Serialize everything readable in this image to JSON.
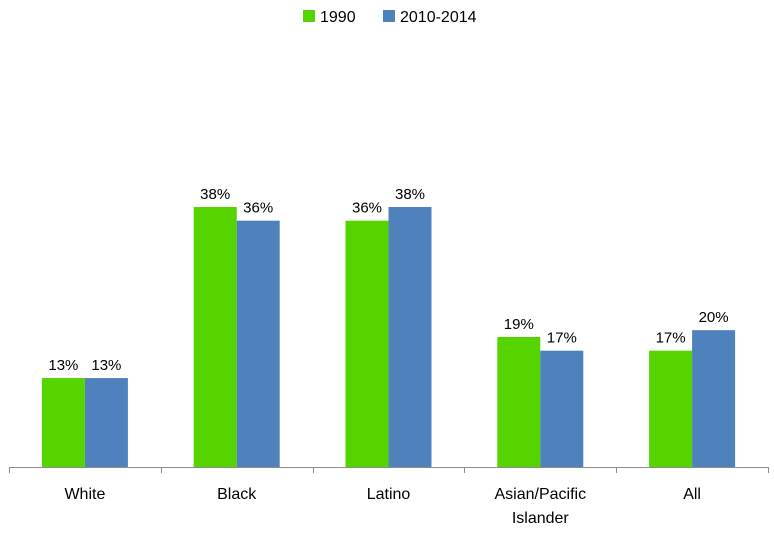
{
  "chart_data": {
    "type": "bar",
    "title": "",
    "xlabel": "",
    "ylabel": "",
    "ylim": [
      0,
      44
    ],
    "grid": false,
    "legend_position": "top-center",
    "categories": [
      "White",
      "Black",
      "Latino",
      "Asian/Pacific Islander",
      "All"
    ],
    "category_lines": [
      [
        "White"
      ],
      [
        "Black"
      ],
      [
        "Latino"
      ],
      [
        "Asian/Pacific",
        "Islander"
      ],
      [
        "All"
      ]
    ],
    "series": [
      {
        "name": "1990",
        "color": "#56d400",
        "values": [
          13,
          38,
          36,
          19,
          17
        ],
        "labels": [
          "13%",
          "38%",
          "36%",
          "19%",
          "17%"
        ]
      },
      {
        "name": "2010-2014",
        "color": "#4f81bd",
        "values": [
          13,
          36,
          38,
          17,
          20
        ],
        "labels": [
          "13%",
          "36%",
          "38%",
          "17%",
          "20%"
        ]
      }
    ]
  }
}
